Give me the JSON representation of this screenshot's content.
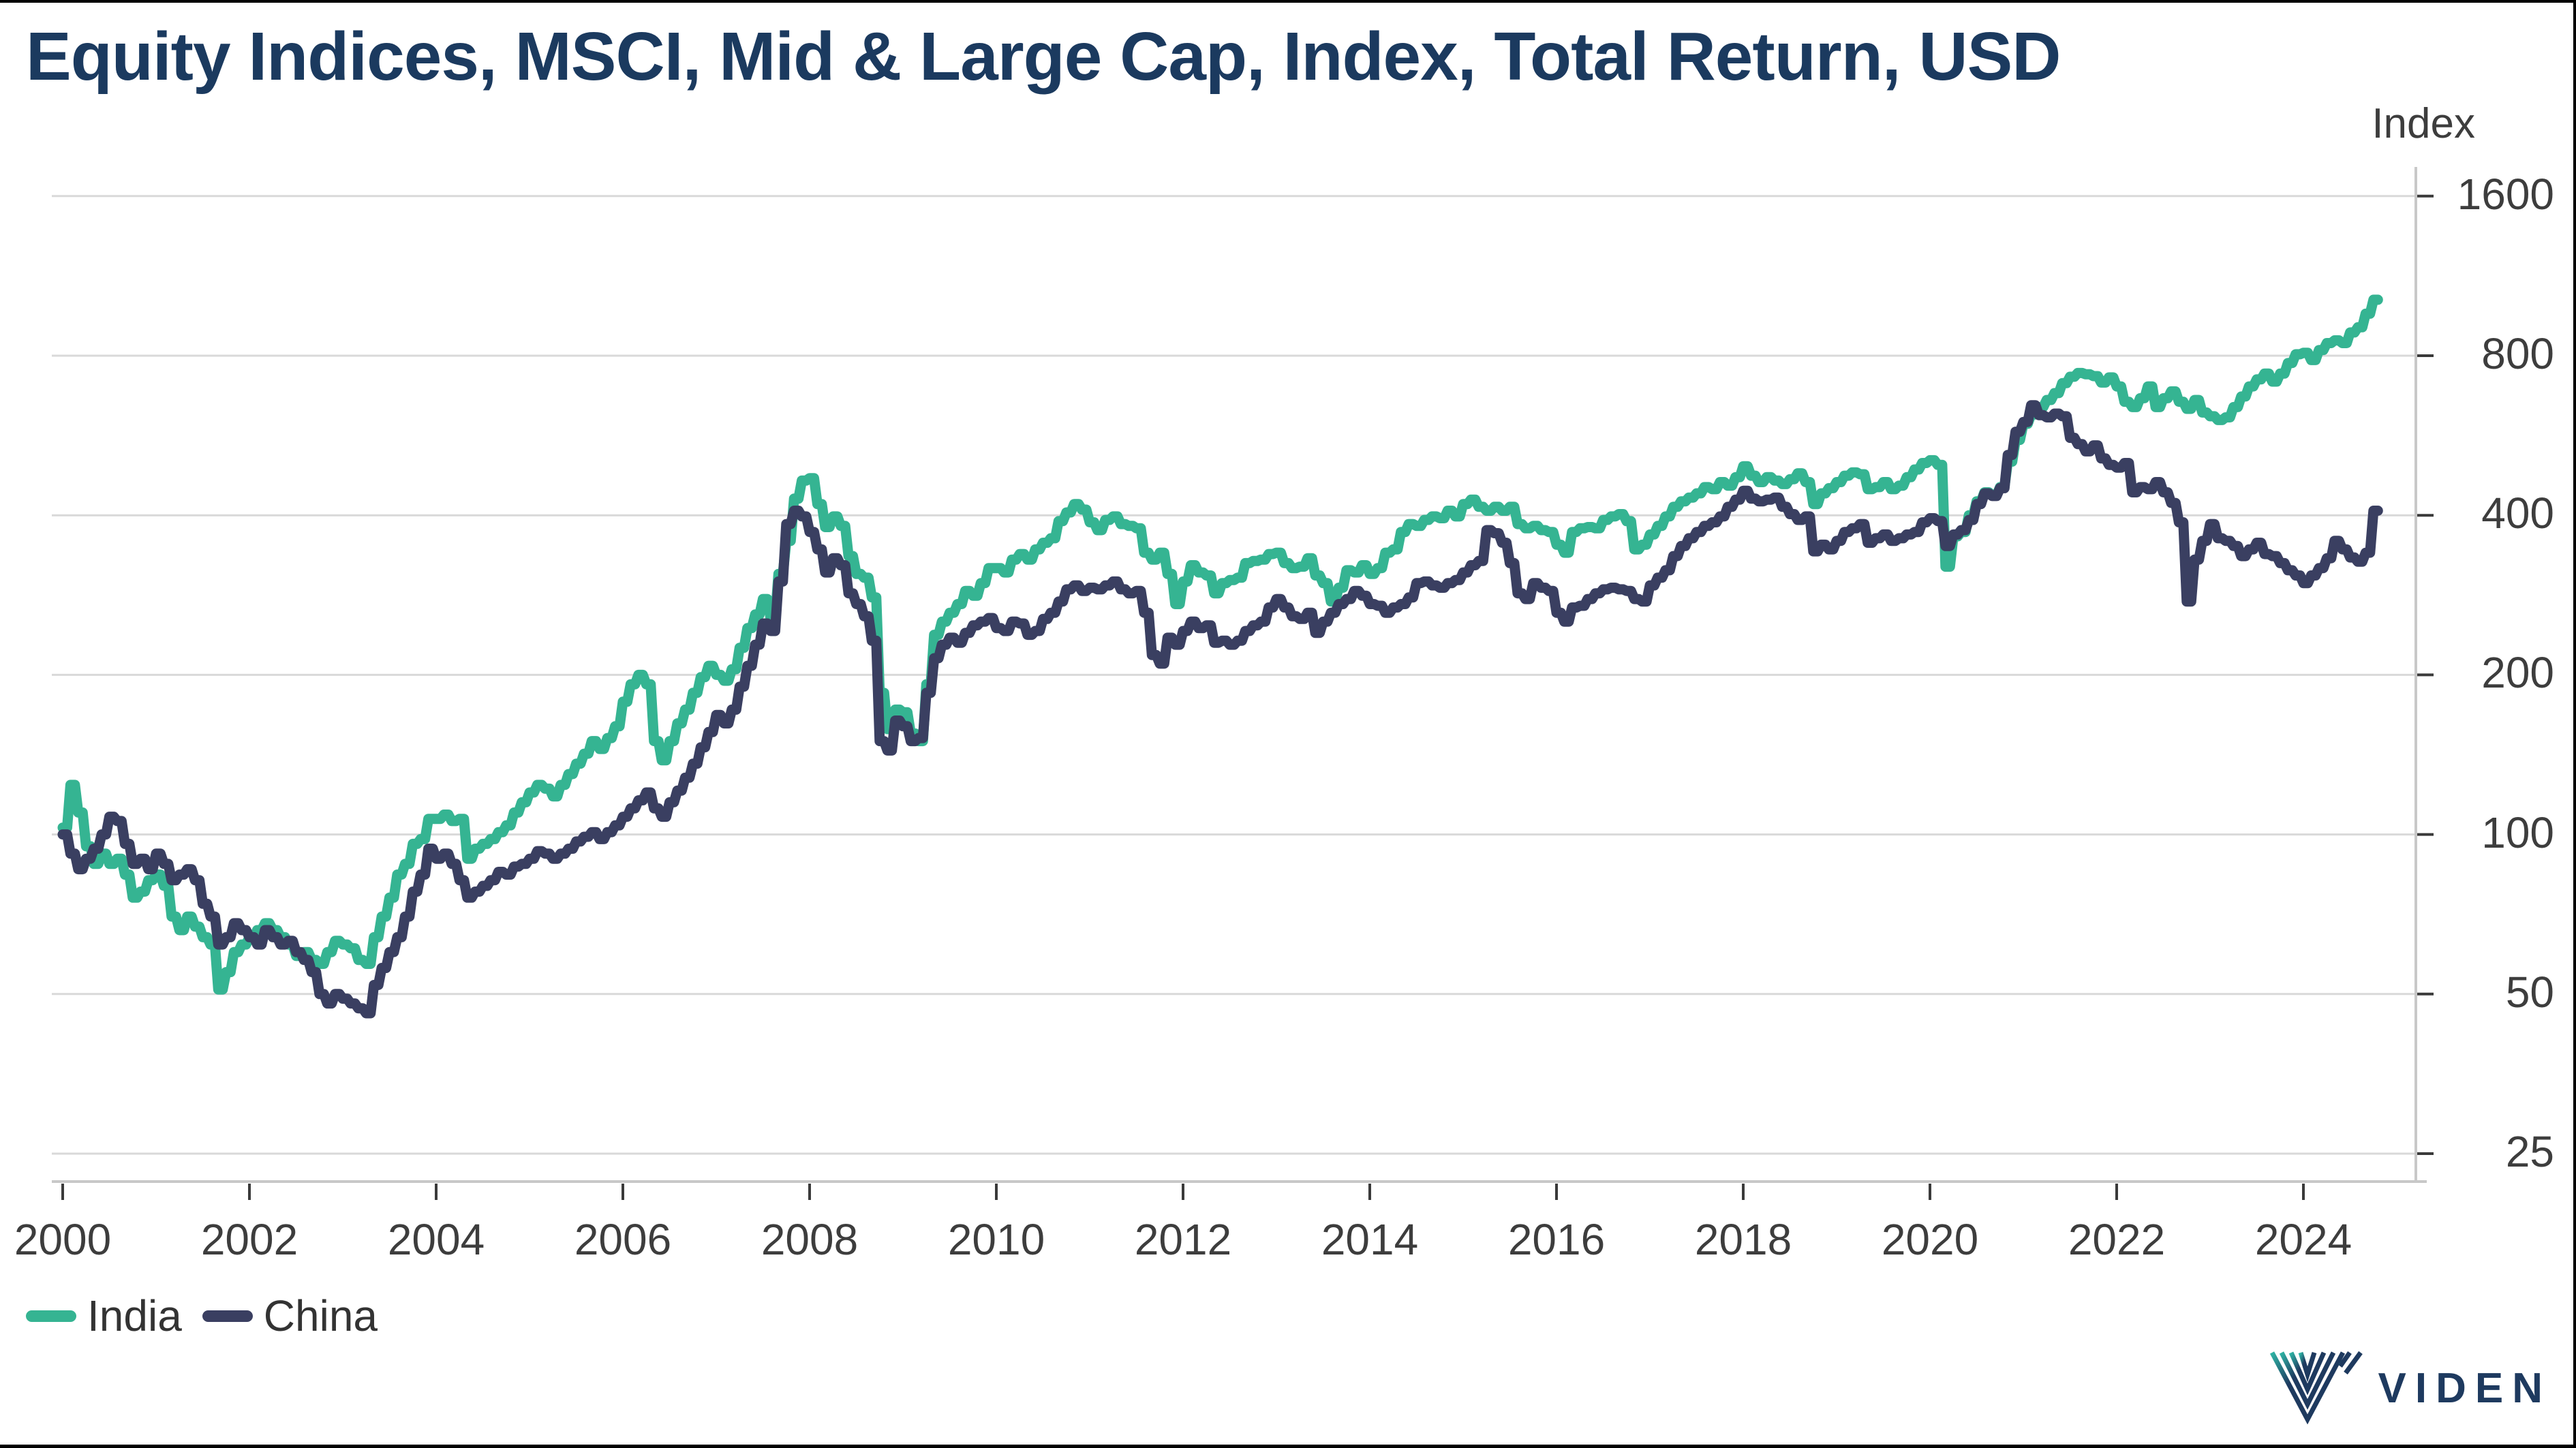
{
  "title": "Equity Indices, MSCI, Mid & Large Cap, Index, Total Return, USD",
  "unit_label": "Index",
  "legend": [
    {
      "label": "India",
      "color": "#35b492"
    },
    {
      "label": "China",
      "color": "#3a3f61"
    }
  ],
  "brand": {
    "text": "VIDEN"
  },
  "colors": {
    "title_navy": "#1b3a5f",
    "india_teal": "#35b492",
    "china_navy": "#3a3f61",
    "label_gray": "#3d3d3d",
    "grid_gray": "#d9d9d9",
    "axis_gray": "#c8c8c8",
    "tick_dark": "#3a3a3a",
    "logo_navy": "#1e3a5f",
    "logo_teal": "#2fb3a4",
    "frame_black": "#000000"
  },
  "chart_data": {
    "type": "line",
    "title": "Equity Indices, MSCI, Mid & Large Cap, Index, Total Return, USD",
    "ylabel": "Index",
    "y_scale": "log2",
    "y_ticks": [
      1600,
      800,
      400,
      200,
      100,
      50,
      25
    ],
    "x_ticks": [
      2000,
      2002,
      2004,
      2006,
      2008,
      2010,
      2012,
      2014,
      2016,
      2018,
      2020,
      2022,
      2024
    ],
    "x_start_year": 2000.0,
    "x_interval": "monthly",
    "x_end": "2024-10",
    "grid": "horizontal-only",
    "legend_position": "bottom-left",
    "series": [
      {
        "name": "India",
        "color": "#35b492",
        "values": [
          103,
          124,
          110,
          95,
          88,
          92,
          88,
          90,
          84,
          76,
          78,
          82,
          84,
          80,
          70,
          66,
          70,
          67,
          64,
          62,
          51,
          55,
          60,
          62,
          64,
          66,
          68,
          66,
          64,
          62,
          59,
          60,
          58,
          57,
          60,
          63,
          62,
          61,
          58,
          57,
          64,
          70,
          76,
          84,
          88,
          96,
          98,
          107,
          107,
          109,
          106,
          107,
          90,
          94,
          96,
          98,
          101,
          104,
          110,
          115,
          120,
          124,
          122,
          118,
          124,
          130,
          136,
          142,
          150,
          145,
          152,
          160,
          178,
          192,
          200,
          192,
          150,
          138,
          150,
          162,
          172,
          185,
          198,
          208,
          200,
          195,
          205,
          225,
          245,
          260,
          278,
          255,
          310,
          358,
          430,
          465,
          470,
          420,
          380,
          398,
          382,
          335,
          310,
          305,
          280,
          185,
          158,
          172,
          170,
          155,
          150,
          192,
          238,
          252,
          262,
          272,
          288,
          282,
          298,
          318,
          318,
          312,
          330,
          338,
          330,
          345,
          355,
          362,
          390,
          405,
          420,
          410,
          388,
          375,
          392,
          398,
          385,
          382,
          378,
          340,
          330,
          340,
          310,
          272,
          300,
          322,
          312,
          308,
          285,
          298,
          302,
          305,
          325,
          328,
          330,
          338,
          340,
          325,
          318,
          320,
          332,
          308,
          298,
          275,
          292,
          315,
          312,
          322,
          310,
          318,
          340,
          345,
          372,
          385,
          382,
          392,
          398,
          395,
          408,
          398,
          420,
          428,
          415,
          408,
          415,
          408,
          415,
          385,
          378,
          382,
          375,
          372,
          352,
          340,
          372,
          378,
          380,
          378,
          392,
          398,
          402,
          390,
          345,
          352,
          368,
          382,
          398,
          415,
          425,
          432,
          440,
          452,
          448,
          462,
          455,
          472,
          495,
          475,
          462,
          472,
          465,
          458,
          468,
          480,
          462,
          420,
          440,
          450,
          462,
          475,
          482,
          478,
          448,
          452,
          462,
          448,
          455,
          472,
          488,
          502,
          508,
          498,
          320,
          365,
          372,
          400,
          425,
          442,
          436,
          452,
          505,
          555,
          595,
          620,
          640,
          660,
          680,
          710,
          730,
          742,
          738,
          732,
          712,
          728,
          700,
          655,
          640,
          665,
          700,
          640,
          665,
          685,
          655,
          635,
          660,
          625,
          615,
          605,
          612,
          640,
          670,
          700,
          722,
          740,
          715,
          740,
          775,
          805,
          810,
          785,
          820,
          845,
          855,
          845,
          885,
          905,
          960,
          1020
        ]
      },
      {
        "name": "China",
        "color": "#3a3f61",
        "values": [
          100,
          92,
          86,
          90,
          94,
          100,
          108,
          106,
          96,
          88,
          90,
          86,
          92,
          88,
          82,
          84,
          86,
          82,
          74,
          70,
          62,
          64,
          68,
          66,
          64,
          62,
          66,
          64,
          62,
          63,
          60,
          58,
          55,
          50,
          48,
          50,
          49,
          48,
          47,
          46,
          52,
          56,
          60,
          64,
          70,
          78,
          84,
          94,
          90,
          92,
          88,
          82,
          76,
          78,
          80,
          82,
          85,
          84,
          87,
          88,
          90,
          93,
          92,
          90,
          92,
          94,
          97,
          99,
          101,
          98,
          101,
          104,
          108,
          112,
          116,
          120,
          112,
          108,
          115,
          121,
          128,
          136,
          146,
          156,
          168,
          162,
          172,
          190,
          208,
          228,
          250,
          242,
          300,
          385,
          408,
          398,
          372,
          345,
          312,
          332,
          322,
          285,
          272,
          258,
          232,
          150,
          144,
          164,
          160,
          150,
          152,
          185,
          215,
          228,
          235,
          230,
          240,
          248,
          252,
          256,
          245,
          242,
          252,
          250,
          238,
          242,
          255,
          262,
          275,
          290,
          295,
          288,
          292,
          290,
          295,
          300,
          290,
          285,
          288,
          262,
          218,
          210,
          235,
          228,
          242,
          252,
          245,
          248,
          230,
          232,
          228,
          232,
          242,
          248,
          252,
          268,
          278,
          268,
          258,
          255,
          262,
          240,
          252,
          262,
          272,
          278,
          288,
          282,
          272,
          270,
          262,
          268,
          272,
          280,
          298,
          300,
          295,
          292,
          298,
          302,
          312,
          322,
          328,
          375,
          370,
          355,
          325,
          285,
          278,
          298,
          292,
          288,
          262,
          252,
          268,
          270,
          278,
          285,
          290,
          292,
          290,
          288,
          278,
          275,
          295,
          305,
          315,
          335,
          350,
          362,
          372,
          382,
          388,
          398,
          415,
          428,
          445,
          430,
          425,
          428,
          432,
          415,
          402,
          392,
          398,
          342,
          352,
          345,
          358,
          372,
          378,
          385,
          355,
          362,
          368,
          358,
          362,
          368,
          372,
          388,
          395,
          390,
          350,
          368,
          375,
          392,
          420,
          440,
          435,
          450,
          520,
          575,
          600,
          645,
          618,
          612,
          622,
          615,
          560,
          545,
          528,
          542,
          512,
          498,
          492,
          502,
          442,
          452,
          448,
          462,
          442,
          422,
          388,
          275,
          330,
          358,
          385,
          362,
          358,
          350,
          335,
          345,
          355,
          338,
          335,
          325,
          315,
          308,
          298,
          308,
          318,
          332,
          358,
          345,
          333,
          327,
          340,
          408
        ]
      }
    ]
  }
}
